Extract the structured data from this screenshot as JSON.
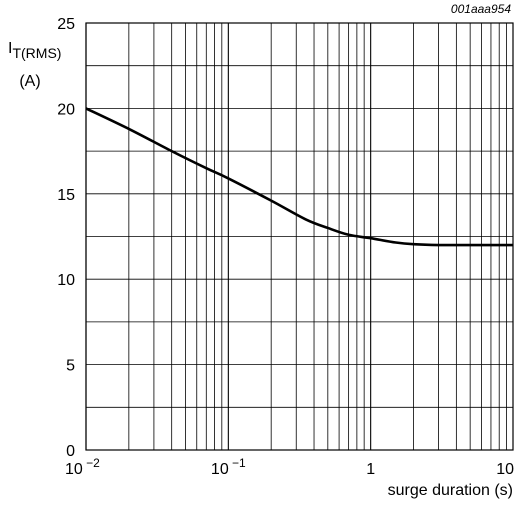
{
  "figure_code": "001aaa954",
  "chart_data": {
    "type": "line",
    "x_scale": "log",
    "xlim": [
      0.01,
      10
    ],
    "ylim": [
      0,
      25
    ],
    "grid": true,
    "ylabel_main": "I",
    "ylabel_sub": "T(RMS)",
    "ylabel_unit": "(A)",
    "xlabel": "surge duration (s)",
    "x_ticks": [
      {
        "value": 0.01,
        "base": "10",
        "exp": "−2"
      },
      {
        "value": 0.1,
        "base": "10",
        "exp": "−1"
      },
      {
        "value": 1,
        "base": "1",
        "exp": ""
      },
      {
        "value": 10,
        "base": "10",
        "exp": ""
      }
    ],
    "y_ticks": [
      0,
      5,
      10,
      15,
      20,
      25
    ],
    "series": [
      {
        "x": [
          0.01,
          0.02,
          0.04,
          0.07,
          0.1,
          0.2,
          0.35,
          0.5,
          0.7,
          1,
          1.5,
          2,
          3,
          5,
          10
        ],
        "y": [
          20,
          18.8,
          17.5,
          16.5,
          15.9,
          14.6,
          13.5,
          13.0,
          12.6,
          12.4,
          12.15,
          12.05,
          12.0,
          12.0,
          12.0
        ]
      }
    ]
  }
}
